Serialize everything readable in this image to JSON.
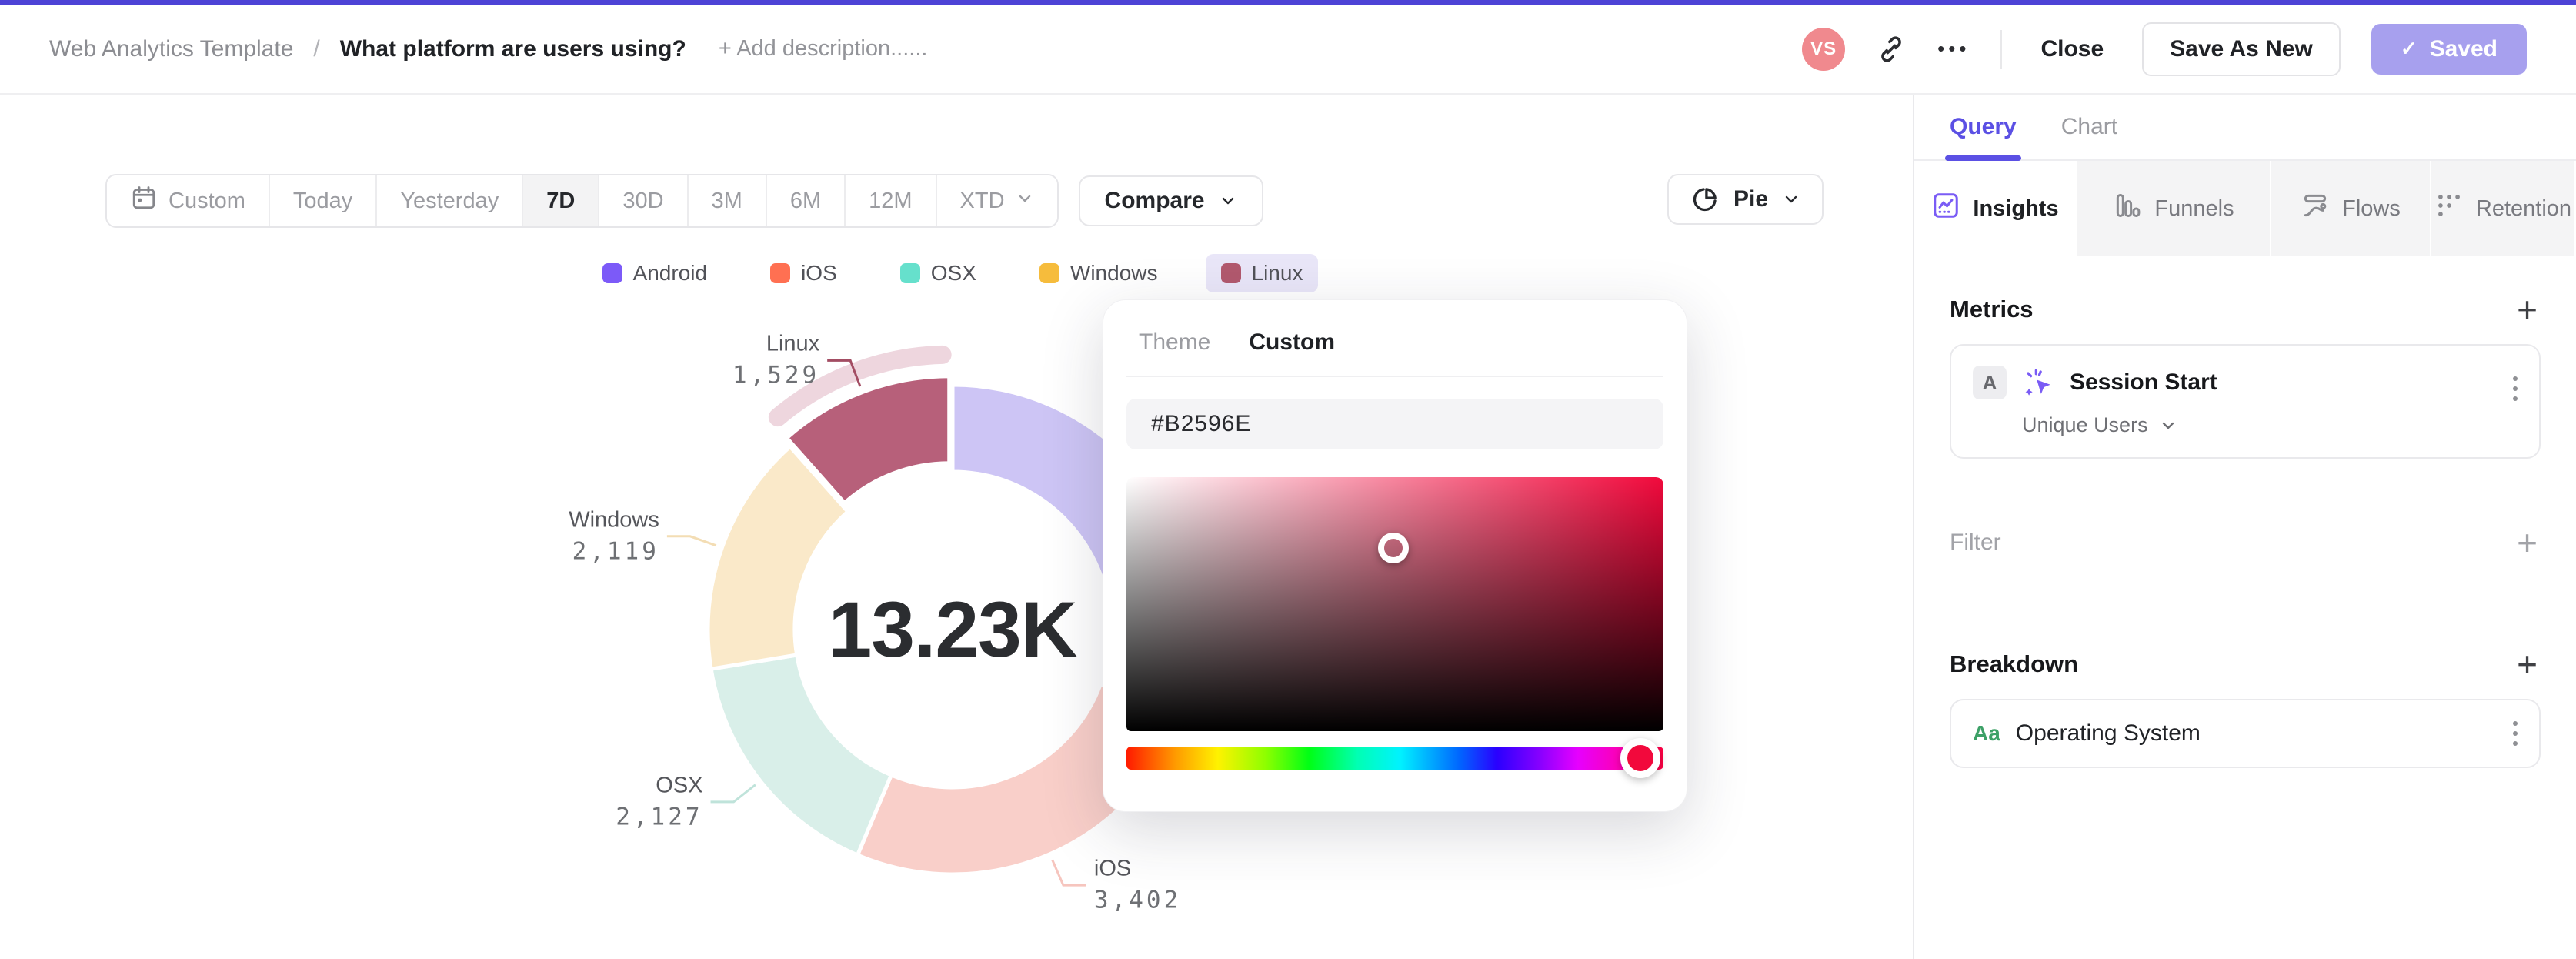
{
  "colors": {
    "accent": "#4d43d6",
    "saved_button_bg": "#a7a0ee",
    "avatar_bg": "#f0898e",
    "sidebar_active_purple": "#5b50e4",
    "legend_highlight_pill": "#e9e6f8"
  },
  "header": {
    "breadcrumb_root": "Web Analytics Template",
    "breadcrumb_separator": "/",
    "title": "What platform are users using?",
    "add_description": "+ Add description......",
    "avatar_initials": "VS",
    "more_label": "•••",
    "close_label": "Close",
    "save_as_new_label": "Save As New",
    "saved_label": "Saved",
    "saved_check": "✓"
  },
  "toolbar": {
    "ranges": [
      "Custom",
      "Today",
      "Yesterday",
      "7D",
      "30D",
      "3M",
      "6M",
      "12M",
      "XTD"
    ],
    "active_range": "7D",
    "range_with_calendar_icon": "Custom",
    "ranges_with_dropdown": [
      "XTD"
    ],
    "compare_label": "Compare",
    "chart_type_label": "Pie"
  },
  "chart_data": {
    "type": "pie",
    "subtype": "donut",
    "center_total": "13.23K",
    "direction": "clockwise",
    "start": "top",
    "legend_position": "top-center",
    "series": [
      {
        "name": "Android",
        "value": 4053,
        "value_estimated": true,
        "value_label": null,
        "label_visible": false,
        "legend_color": "#7c5af8",
        "slice_color": "#cdc5f5",
        "leader_color": null,
        "highlighted": false
      },
      {
        "name": "iOS",
        "value": 3402,
        "value_label": "3,402",
        "label_visible": true,
        "legend_color": "#ff7052",
        "slice_color": "#f9cfc9",
        "leader_color": "#f6c5be",
        "highlighted": false
      },
      {
        "name": "OSX",
        "value": 2127,
        "value_label": "2,127",
        "label_visible": true,
        "legend_color": "#66e0cc",
        "slice_color": "#d9efe9",
        "leader_color": "#bfe3da",
        "highlighted": false
      },
      {
        "name": "Windows",
        "value": 2119,
        "value_label": "2,119",
        "label_visible": true,
        "legend_color": "#f6bc3c",
        "slice_color": "#fae9c9",
        "leader_color": "#f3ddb4",
        "highlighted": false
      },
      {
        "name": "Linux",
        "value": 1529,
        "value_label": "1,529",
        "label_visible": true,
        "legend_color": "#b2596e",
        "slice_color": "#b7607a",
        "leader_color": "#a34d63",
        "highlighted": true,
        "halo_color": "#eed6de"
      }
    ]
  },
  "color_picker": {
    "tabs": [
      "Theme",
      "Custom"
    ],
    "active_tab": "Custom",
    "hex_value": "#B2596E",
    "hue_color": "#f2093c",
    "hue_percent": 95.7,
    "sv_cursor_x_percent": 49.7,
    "sv_cursor_y_percent": 28
  },
  "sidebar": {
    "tabs": [
      {
        "label": "Query",
        "active": true
      },
      {
        "label": "Chart",
        "active": false
      }
    ],
    "view_tabs": [
      {
        "label": "Insights",
        "icon": "insights-icon",
        "active": true
      },
      {
        "label": "Funnels",
        "icon": "funnels-icon",
        "active": false
      },
      {
        "label": "Flows",
        "icon": "flows-icon",
        "active": false
      },
      {
        "label": "Retention",
        "icon": "retention-icon",
        "active": false
      }
    ],
    "metrics": {
      "title": "Metrics",
      "add_label": "+",
      "card": {
        "series_badge": "A",
        "event_name": "Session Start",
        "aggregation": "Unique Users"
      }
    },
    "filter": {
      "title": "Filter",
      "add_label": "+"
    },
    "breakdown": {
      "title": "Breakdown",
      "add_label": "+",
      "card": {
        "type_badge": "Aa",
        "property": "Operating System"
      }
    }
  }
}
